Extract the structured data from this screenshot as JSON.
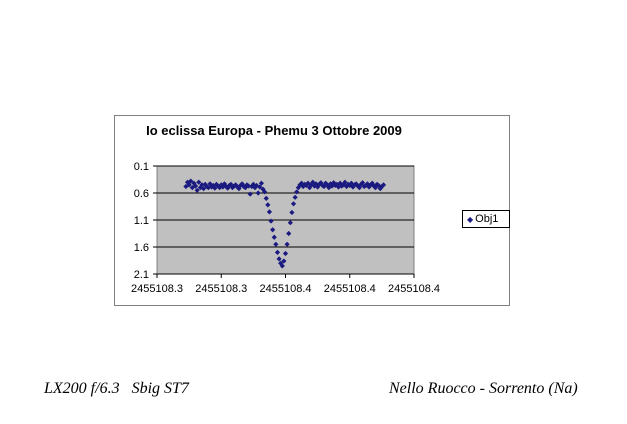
{
  "chart_data": {
    "type": "scatter",
    "title": "Io eclissa Europa - Phemu 3 Ottobre 2009",
    "xlabel": "",
    "ylabel": "",
    "x_tick_labels": [
      "2455108.3",
      "2455108.3",
      "2455108.4",
      "2455108.4",
      "2455108.4"
    ],
    "x_ticks": [
      2455108.34,
      2455108.36,
      2455108.38,
      2455108.4,
      2455108.42
    ],
    "xlim": [
      2455108.34,
      2455108.42
    ],
    "y_tick_labels": [
      "0.1",
      "0.6",
      "1.1",
      "1.6",
      "2.1"
    ],
    "y_ticks": [
      0.1,
      0.6,
      1.1,
      1.6,
      2.1
    ],
    "ylim": [
      0.1,
      2.1
    ],
    "y_reversed": true,
    "grid": "horizontal",
    "legend_position": "right",
    "series": [
      {
        "name": "Obj1",
        "color": "#1a1a80",
        "marker": "diamond",
        "points": [
          [
            2455108.349,
            0.48
          ],
          [
            2455108.3495,
            0.4
          ],
          [
            2455108.35,
            0.45
          ],
          [
            2455108.3505,
            0.38
          ],
          [
            2455108.351,
            0.5
          ],
          [
            2455108.3515,
            0.42
          ],
          [
            2455108.352,
            0.47
          ],
          [
            2455108.3525,
            0.55
          ],
          [
            2455108.353,
            0.4
          ],
          [
            2455108.3535,
            0.5
          ],
          [
            2455108.354,
            0.45
          ],
          [
            2455108.3545,
            0.52
          ],
          [
            2455108.355,
            0.44
          ],
          [
            2455108.3555,
            0.48
          ],
          [
            2455108.356,
            0.5
          ],
          [
            2455108.3565,
            0.43
          ],
          [
            2455108.357,
            0.49
          ],
          [
            2455108.3575,
            0.46
          ],
          [
            2455108.358,
            0.51
          ],
          [
            2455108.3585,
            0.44
          ],
          [
            2455108.359,
            0.47
          ],
          [
            2455108.3595,
            0.5
          ],
          [
            2455108.36,
            0.45
          ],
          [
            2455108.3605,
            0.49
          ],
          [
            2455108.361,
            0.43
          ],
          [
            2455108.3615,
            0.48
          ],
          [
            2455108.362,
            0.51
          ],
          [
            2455108.3625,
            0.46
          ],
          [
            2455108.363,
            0.44
          ],
          [
            2455108.3635,
            0.5
          ],
          [
            2455108.364,
            0.47
          ],
          [
            2455108.3645,
            0.45
          ],
          [
            2455108.365,
            0.49
          ],
          [
            2455108.3655,
            0.52
          ],
          [
            2455108.366,
            0.46
          ],
          [
            2455108.3665,
            0.43
          ],
          [
            2455108.367,
            0.48
          ],
          [
            2455108.3675,
            0.5
          ],
          [
            2455108.368,
            0.45
          ],
          [
            2455108.3685,
            0.47
          ],
          [
            2455108.369,
            0.62
          ],
          [
            2455108.3695,
            0.48
          ],
          [
            2455108.37,
            0.44
          ],
          [
            2455108.3705,
            0.5
          ],
          [
            2455108.371,
            0.46
          ],
          [
            2455108.3715,
            0.6
          ],
          [
            2455108.372,
            0.49
          ],
          [
            2455108.3725,
            0.42
          ],
          [
            2455108.373,
            0.53
          ],
          [
            2455108.3735,
            0.58
          ],
          [
            2455108.374,
            0.7
          ],
          [
            2455108.3745,
            0.82
          ],
          [
            2455108.375,
            0.95
          ],
          [
            2455108.3755,
            1.12
          ],
          [
            2455108.376,
            1.28
          ],
          [
            2455108.3765,
            1.42
          ],
          [
            2455108.377,
            1.55
          ],
          [
            2455108.3775,
            1.7
          ],
          [
            2455108.378,
            1.82
          ],
          [
            2455108.3785,
            1.9
          ],
          [
            2455108.379,
            1.95
          ],
          [
            2455108.3795,
            1.86
          ],
          [
            2455108.38,
            1.72
          ],
          [
            2455108.3805,
            1.55
          ],
          [
            2455108.381,
            1.35
          ],
          [
            2455108.3815,
            1.15
          ],
          [
            2455108.382,
            0.96
          ],
          [
            2455108.3825,
            0.8
          ],
          [
            2455108.383,
            0.68
          ],
          [
            2455108.3835,
            0.58
          ],
          [
            2455108.384,
            0.5
          ],
          [
            2455108.3845,
            0.45
          ],
          [
            2455108.385,
            0.42
          ],
          [
            2455108.3855,
            0.48
          ],
          [
            2455108.386,
            0.44
          ],
          [
            2455108.3865,
            0.46
          ],
          [
            2455108.387,
            0.42
          ],
          [
            2455108.3875,
            0.5
          ],
          [
            2455108.388,
            0.45
          ],
          [
            2455108.3885,
            0.4
          ],
          [
            2455108.389,
            0.47
          ],
          [
            2455108.3895,
            0.43
          ],
          [
            2455108.39,
            0.49
          ],
          [
            2455108.3905,
            0.44
          ],
          [
            2455108.391,
            0.41
          ],
          [
            2455108.3915,
            0.46
          ],
          [
            2455108.392,
            0.48
          ],
          [
            2455108.3925,
            0.42
          ],
          [
            2455108.393,
            0.45
          ],
          [
            2455108.3935,
            0.5
          ],
          [
            2455108.394,
            0.43
          ],
          [
            2455108.3945,
            0.47
          ],
          [
            2455108.395,
            0.41
          ],
          [
            2455108.3955,
            0.46
          ],
          [
            2455108.396,
            0.44
          ],
          [
            2455108.3965,
            0.49
          ],
          [
            2455108.397,
            0.42
          ],
          [
            2455108.3975,
            0.47
          ],
          [
            2455108.398,
            0.45
          ],
          [
            2455108.3985,
            0.4
          ],
          [
            2455108.399,
            0.48
          ],
          [
            2455108.3995,
            0.44
          ],
          [
            2455108.4,
            0.46
          ],
          [
            2455108.4005,
            0.42
          ],
          [
            2455108.401,
            0.49
          ],
          [
            2455108.4015,
            0.45
          ],
          [
            2455108.402,
            0.43
          ],
          [
            2455108.4025,
            0.47
          ],
          [
            2455108.403,
            0.5
          ],
          [
            2455108.4035,
            0.44
          ],
          [
            2455108.404,
            0.41
          ],
          [
            2455108.4045,
            0.48
          ],
          [
            2455108.405,
            0.46
          ],
          [
            2455108.4055,
            0.43
          ],
          [
            2455108.406,
            0.49
          ],
          [
            2455108.4065,
            0.45
          ],
          [
            2455108.407,
            0.42
          ],
          [
            2455108.4075,
            0.47
          ],
          [
            2455108.408,
            0.5
          ],
          [
            2455108.4085,
            0.44
          ],
          [
            2455108.409,
            0.46
          ],
          [
            2455108.4095,
            0.52
          ],
          [
            2455108.41,
            0.48
          ],
          [
            2455108.4105,
            0.45
          ]
        ]
      }
    ]
  },
  "captions": {
    "left": "LX200 f/6.3   Sbig ST7",
    "right": "Nello Ruocco - Sorrento (Na)"
  }
}
